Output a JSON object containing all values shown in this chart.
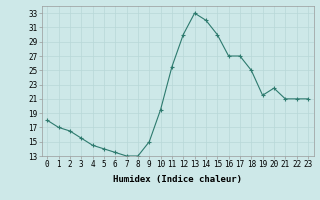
{
  "x": [
    0,
    1,
    2,
    3,
    4,
    5,
    6,
    7,
    8,
    9,
    10,
    11,
    12,
    13,
    14,
    15,
    16,
    17,
    18,
    19,
    20,
    21,
    22,
    23
  ],
  "y": [
    18,
    17,
    16.5,
    15.5,
    14.5,
    14,
    13.5,
    13,
    13,
    15,
    19.5,
    25.5,
    30,
    33,
    32,
    30,
    27,
    27,
    25,
    21.5,
    22.5,
    21,
    21,
    21
  ],
  "line_color": "#2d7a6e",
  "marker": "+",
  "marker_color": "#2d7a6e",
  "bg_color": "#cde8e8",
  "grid_color": "#b8d8d8",
  "xlabel": "Humidex (Indice chaleur)",
  "xlim": [
    -0.5,
    23.5
  ],
  "ylim": [
    13,
    34
  ],
  "yticks": [
    13,
    15,
    17,
    19,
    21,
    23,
    25,
    27,
    29,
    31,
    33
  ],
  "xticks": [
    0,
    1,
    2,
    3,
    4,
    5,
    6,
    7,
    8,
    9,
    10,
    11,
    12,
    13,
    14,
    15,
    16,
    17,
    18,
    19,
    20,
    21,
    22,
    23
  ],
  "tick_fontsize": 5.5,
  "label_fontsize": 6.5
}
